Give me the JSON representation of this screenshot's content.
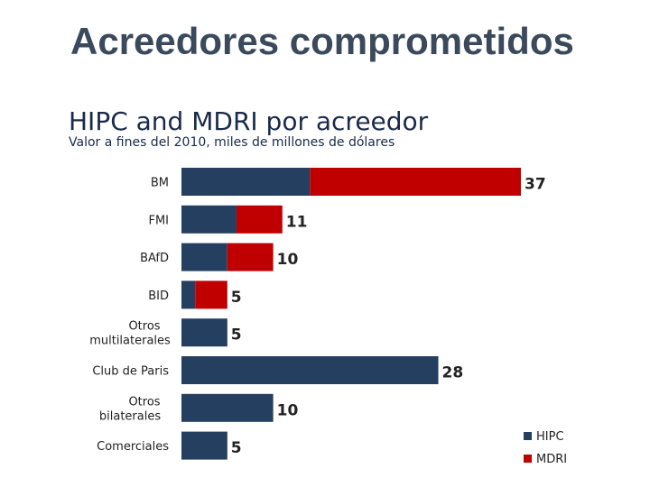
{
  "slide": {
    "title": "Acreedores comprometidos"
  },
  "chart_data": {
    "type": "bar",
    "orientation": "horizontal",
    "stacked": true,
    "title": "HIPC and MDRI por acreedor",
    "subtitle": "Valor a fines del 2010, miles de millones de dólares",
    "categories": [
      "BM",
      "FMI",
      "BAfD",
      "BID",
      "Otros multilaterales",
      "Club de Paris",
      "Otros bilaterales",
      "Comerciales"
    ],
    "series": [
      {
        "name": "HIPC",
        "color": "#243f60",
        "values": [
          14,
          6,
          5,
          1.5,
          5,
          28,
          10,
          5
        ]
      },
      {
        "name": "MDRI",
        "color": "#c00000",
        "values": [
          23,
          5,
          5,
          3.5,
          0,
          0,
          0,
          0
        ]
      }
    ],
    "totals": [
      "37",
      "11",
      "10",
      "5",
      "5",
      "28",
      "10",
      "5"
    ],
    "xlim": [
      0,
      37
    ],
    "grid": false,
    "legend_position": "bottom-right"
  }
}
